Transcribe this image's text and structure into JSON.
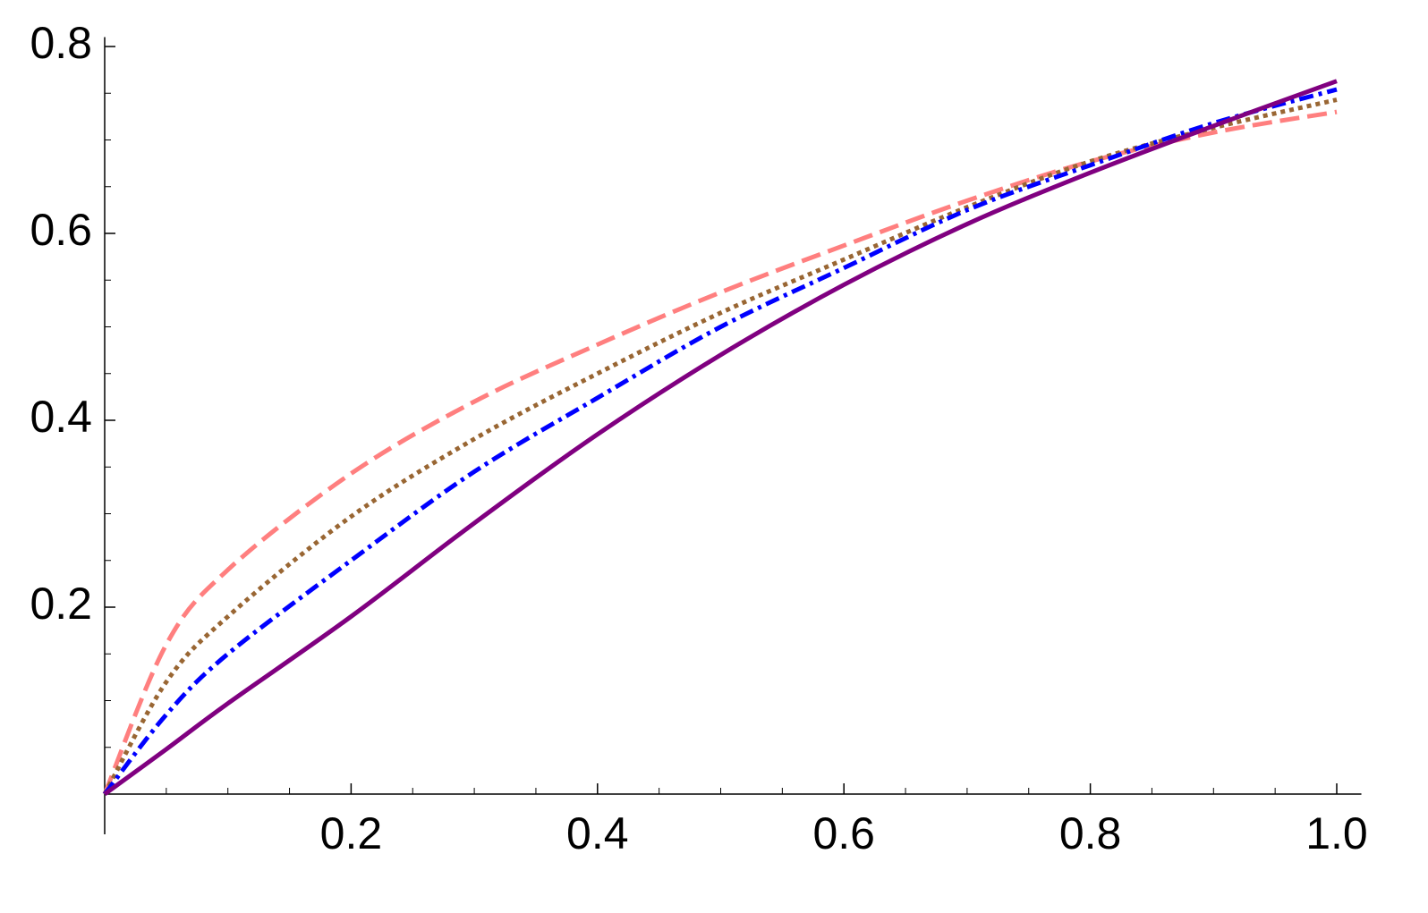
{
  "chart_data": {
    "type": "line",
    "x": [
      0,
      0.05,
      0.1,
      0.2,
      0.3,
      0.4,
      0.5,
      0.6,
      0.7,
      0.8,
      0.9,
      1.0
    ],
    "series": [
      {
        "color": "#ff7f7f",
        "dash": "dashed",
        "values": [
          0,
          0.16,
          0.24,
          0.343,
          0.42,
          0.481,
          0.537,
          0.587,
          0.635,
          0.677,
          0.708,
          0.73
        ]
      },
      {
        "color": "#996633",
        "dash": "dotted",
        "values": [
          0,
          0.12,
          0.19,
          0.297,
          0.38,
          0.45,
          0.515,
          0.572,
          0.628,
          0.677,
          0.713,
          0.743
        ]
      },
      {
        "color": "#0000ff",
        "dash": "dashdot",
        "values": [
          0,
          0.085,
          0.15,
          0.25,
          0.345,
          0.424,
          0.5,
          0.563,
          0.625,
          0.673,
          0.718,
          0.754
        ]
      },
      {
        "color": "#800080",
        "dash": "solid",
        "values": [
          0,
          0.048,
          0.097,
          0.19,
          0.29,
          0.385,
          0.47,
          0.545,
          0.61,
          0.665,
          0.715,
          0.763
        ]
      }
    ],
    "xlim": [
      0,
      1.02
    ],
    "ylim": [
      0,
      0.81
    ],
    "xticks": [
      0.2,
      0.4,
      0.6,
      0.8,
      {
        "value": 1,
        "label": "1.0"
      }
    ],
    "yticks": [
      0.2,
      0.4,
      0.6,
      0.8
    ],
    "xminor": [
      0.05,
      0.1,
      0.15,
      0.25,
      0.3,
      0.35,
      0.45,
      0.5,
      0.55,
      0.65,
      0.7,
      0.75,
      0.85,
      0.9,
      0.95
    ],
    "yminor": [
      0.05,
      0.1,
      0.15,
      0.25,
      0.3,
      0.35,
      0.45,
      0.5,
      0.55,
      0.65,
      0.7,
      0.75
    ]
  }
}
